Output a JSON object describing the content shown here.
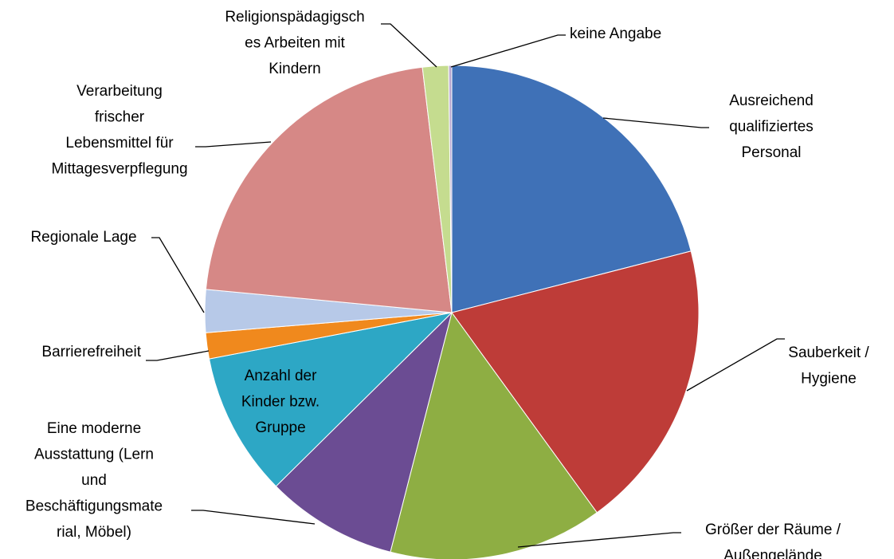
{
  "chart_data": {
    "type": "pie",
    "categories": [
      "Ausreichend\nqualifiziertes\nPersonal",
      "Sauberkeit /\nHygiene",
      "Größer der Räume /\nAußengelände",
      "Eine moderne\nAusstattung (Lern\nund\nBeschäftigungsmate\nrial, Möbel)",
      "Anzahl der\nKinder bzw.\nGruppe",
      "Barrierefreiheit",
      "Regionale Lage",
      "Verarbeitung\nfrischer\nLebensmittel für\nMittagesverpflegung",
      "Religionspädagigsch\nes Arbeiten mit\nKindern",
      "keine Angabe"
    ],
    "values": [
      21,
      19,
      14,
      8.6,
      9.4,
      1.7,
      2.8,
      21.6,
      1.7,
      0.2
    ],
    "colors": [
      "#3f71b7",
      "#be3c38",
      "#8eae43",
      "#6b4c93",
      "#2da7c5",
      "#f0891d",
      "#b7c9e8",
      "#d68886",
      "#c5dc8f",
      "#b9a8d0"
    ]
  }
}
